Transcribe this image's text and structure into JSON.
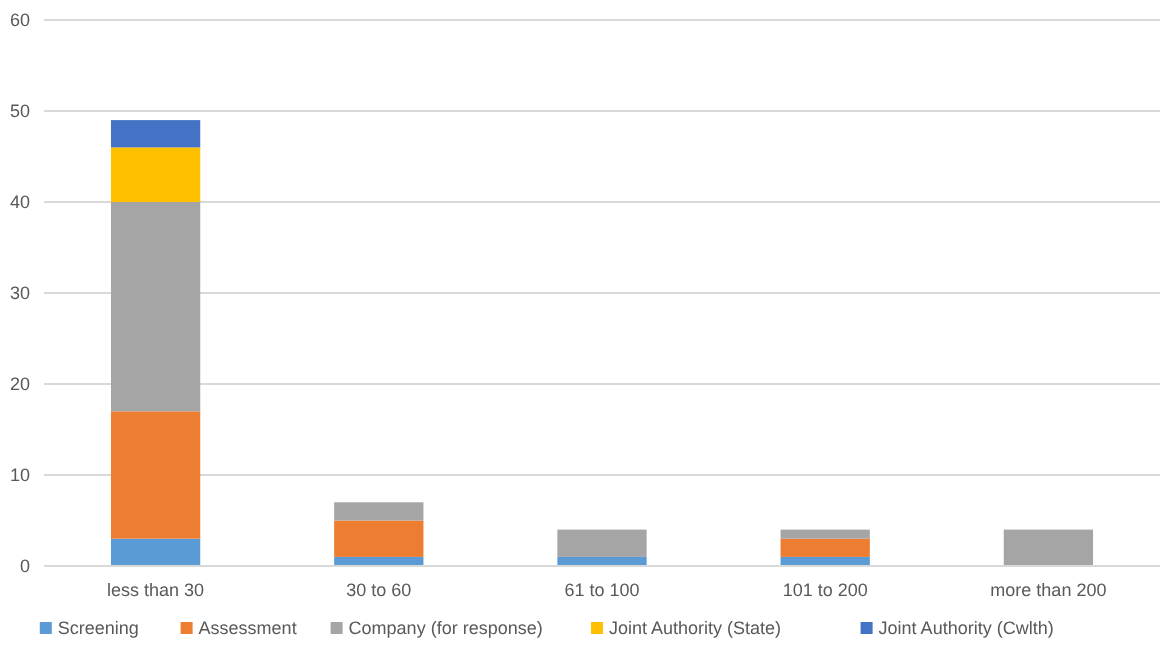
{
  "chart_data": {
    "type": "bar",
    "stacked": true,
    "categories": [
      "less than 30",
      "30 to 60",
      "61 to 100",
      "101 to 200",
      "more than 200"
    ],
    "series": [
      {
        "name": "Screening",
        "color": "#5b9bd5",
        "values": [
          3,
          1,
          1,
          1,
          0
        ]
      },
      {
        "name": "Assessment",
        "color": "#ed7d31",
        "values": [
          14,
          4,
          0,
          2,
          0
        ]
      },
      {
        "name": "Company (for response)",
        "color": "#a5a5a5",
        "values": [
          23,
          2,
          3,
          1,
          4
        ]
      },
      {
        "name": "Joint Authority (State)",
        "color": "#ffc000",
        "values": [
          6,
          0,
          0,
          0,
          0
        ]
      },
      {
        "name": "Joint Authority (Cwlth)",
        "color": "#4472c4",
        "values": [
          3,
          0,
          0,
          0,
          0
        ]
      }
    ],
    "ylim": [
      0,
      60
    ],
    "yticks": [
      0,
      10,
      20,
      30,
      40,
      50,
      60
    ],
    "grid": "y",
    "legend": "bottom"
  }
}
